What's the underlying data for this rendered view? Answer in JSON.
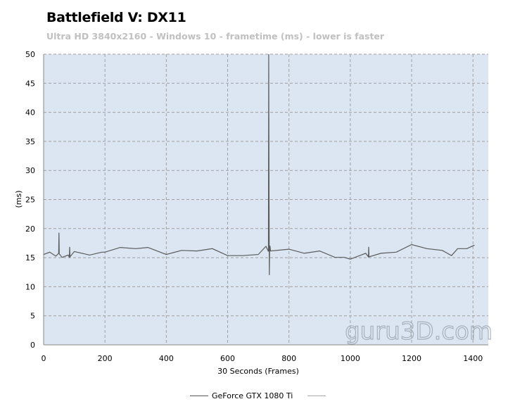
{
  "chart_data": {
    "type": "line",
    "title": "Battlefield V: DX11",
    "subtitle": "Ultra HD 3840x2160 - Windows 10 - frametime (ms) - lower is faster",
    "xlabel": "30 Seconds (Frames)",
    "ylabel": "(ms)",
    "xlim": [
      0,
      1450
    ],
    "ylim": [
      0,
      50
    ],
    "xticks": [
      0,
      200,
      400,
      600,
      800,
      1000,
      1200,
      1400
    ],
    "yticks": [
      0,
      5,
      10,
      15,
      20,
      25,
      30,
      35,
      40,
      45,
      50
    ],
    "grid": true,
    "legend_position": "bottom",
    "series": [
      {
        "name": "GeForce GTX 1080 Ti",
        "color": "#5a5a5a",
        "x": [
          0,
          20,
          40,
          49,
          50,
          51,
          60,
          80,
          84,
          85,
          86,
          100,
          150,
          190,
          200,
          250,
          300,
          340,
          400,
          450,
          500,
          550,
          600,
          650,
          700,
          725,
          733,
          734,
          735,
          736,
          737,
          738,
          740,
          800,
          850,
          900,
          950,
          980,
          1000,
          1050,
          1059,
          1060,
          1061,
          1100,
          1150,
          1200,
          1250,
          1300,
          1330,
          1350,
          1380,
          1405
        ],
        "y": [
          15.8,
          15.7,
          15.5,
          15.5,
          19.3,
          15.4,
          15.3,
          15.2,
          15.3,
          16.6,
          15.4,
          15.8,
          15.7,
          15.7,
          16.2,
          16.5,
          16.8,
          16.5,
          15.8,
          16.0,
          16.4,
          16.3,
          15.6,
          15.1,
          15.8,
          16.7,
          16.3,
          50,
          25,
          12,
          16.5,
          16.8,
          16.4,
          16.2,
          16.0,
          15.9,
          15.3,
          14.8,
          15.0,
          15.5,
          15.4,
          16.6,
          15.4,
          15.5,
          16.2,
          17.0,
          16.8,
          16.0,
          15.6,
          16.3,
          16.8,
          16.9
        ]
      },
      {
        "name": "",
        "color": "#aaaaaa",
        "x": [],
        "y": []
      }
    ]
  },
  "watermark": "guru3D.com",
  "colors": {
    "plot_bg": "#dce6f2",
    "grid": "#a0a0a0"
  }
}
